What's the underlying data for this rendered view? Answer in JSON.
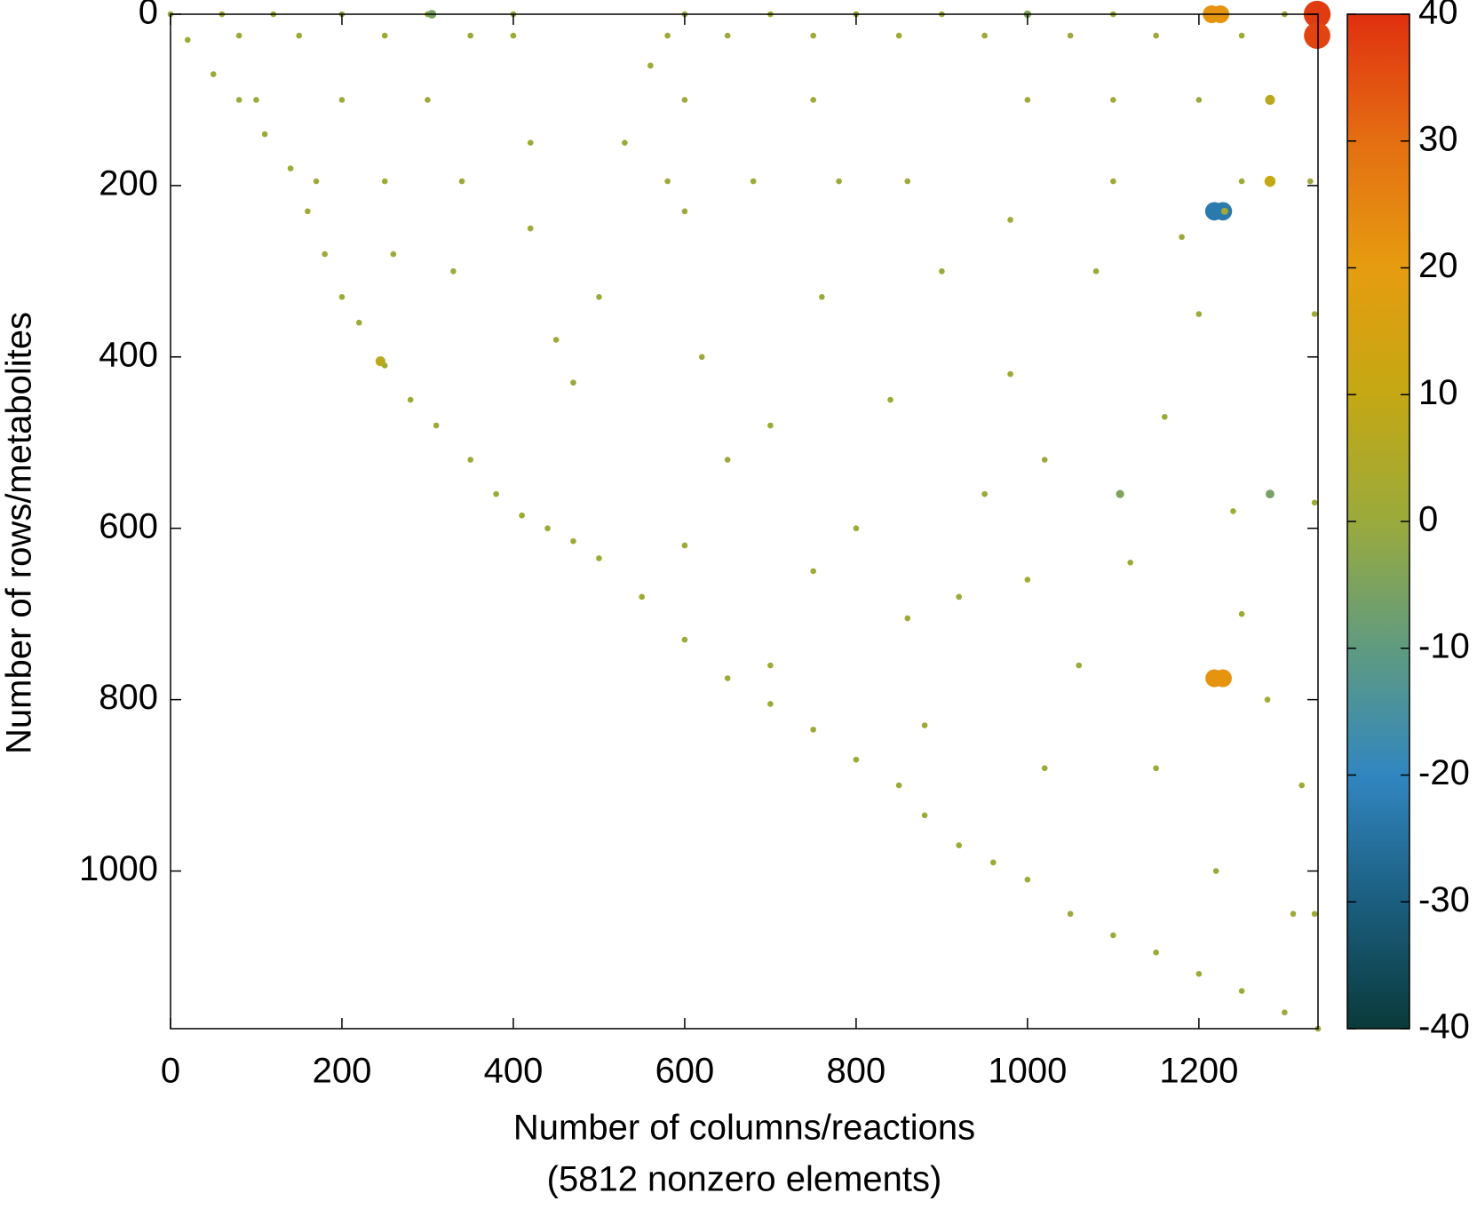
{
  "chart_data": {
    "type": "scatter",
    "xlabel": "Number of columns/reactions",
    "note": "(5812 nonzero elements)",
    "ylabel": "Number of rows/metabolites",
    "xlim": [
      0,
      1339
    ],
    "ylim": [
      0,
      1184
    ],
    "y_inverted": true,
    "xticks": [
      0,
      200,
      400,
      600,
      800,
      1000,
      1200
    ],
    "yticks": [
      0,
      200,
      400,
      600,
      800,
      1000
    ],
    "clim": [
      -40,
      40
    ],
    "cticks": [
      -40,
      -30,
      -20,
      -10,
      0,
      10,
      20,
      30,
      40
    ],
    "colormap": [
      "#0a3a3a",
      "#1b5e7f",
      "#3186c0",
      "#5f9b80",
      "#9aaa3c",
      "#c4a814",
      "#e69c10",
      "#e46e12",
      "#e03010"
    ],
    "x": [
      0,
      20,
      50,
      80,
      110,
      140,
      160,
      180,
      200,
      220,
      250,
      280,
      310,
      350,
      380,
      410,
      440,
      470,
      500,
      550,
      600,
      650,
      700,
      750,
      800,
      850,
      880,
      920,
      960,
      1000,
      1050,
      1100,
      1150,
      1200,
      1250,
      1300,
      1339,
      60,
      120,
      200,
      300,
      400,
      600,
      700,
      800,
      900,
      1000,
      1100,
      1300,
      80,
      150,
      250,
      350,
      400,
      580,
      650,
      750,
      850,
      950,
      1050,
      1150,
      1250,
      100,
      200,
      300,
      600,
      750,
      1000,
      1100,
      1200,
      170,
      250,
      340,
      580,
      680,
      780,
      860,
      1100,
      1250,
      1330,
      260,
      330,
      420,
      450,
      500,
      620,
      650,
      700,
      760,
      800,
      840,
      900,
      920,
      950,
      980,
      1020,
      1060,
      1120,
      1160,
      1200,
      1240,
      1280,
      1320,
      1310,
      1220,
      1150,
      1020,
      860,
      880,
      700,
      1080,
      1180,
      980,
      600,
      560,
      530,
      420,
      470,
      600,
      750,
      1000,
      1250,
      1335,
      1335,
      1335,
      1215,
      1225,
      1338,
      1338,
      1218,
      1228,
      1218,
      1228,
      245,
      1283,
      1283,
      1108,
      1283,
      1230,
      1000,
      305
    ],
    "y": [
      0,
      30,
      70,
      100,
      140,
      180,
      230,
      280,
      330,
      360,
      410,
      450,
      480,
      520,
      560,
      585,
      600,
      615,
      635,
      680,
      730,
      775,
      805,
      835,
      870,
      900,
      935,
      970,
      990,
      1010,
      1050,
      1075,
      1095,
      1120,
      1140,
      1165,
      1184,
      0,
      0,
      0,
      0,
      0,
      0,
      0,
      0,
      0,
      0,
      0,
      0,
      25,
      25,
      25,
      25,
      25,
      25,
      25,
      25,
      25,
      25,
      25,
      25,
      25,
      100,
      100,
      100,
      100,
      100,
      100,
      100,
      100,
      195,
      195,
      195,
      195,
      195,
      195,
      195,
      195,
      195,
      195,
      280,
      300,
      250,
      380,
      330,
      400,
      520,
      480,
      330,
      600,
      450,
      300,
      680,
      560,
      420,
      520,
      760,
      640,
      470,
      350,
      580,
      800,
      900,
      1050,
      1000,
      880,
      880,
      705,
      830,
      760,
      300,
      260,
      240,
      230,
      60,
      150,
      150,
      430,
      620,
      650,
      660,
      700,
      350,
      570,
      1050,
      0,
      0,
      0,
      25,
      230,
      230,
      775,
      775,
      405,
      195,
      100,
      560,
      560,
      230,
      0,
      0
    ],
    "values": [
      1,
      1,
      1,
      1,
      1,
      1,
      1,
      1,
      1,
      1,
      1,
      1,
      1,
      1,
      1,
      1,
      1,
      1,
      1,
      1,
      1,
      1,
      1,
      1,
      1,
      1,
      1,
      1,
      1,
      1,
      1,
      1,
      1,
      1,
      1,
      1,
      1,
      1,
      1,
      1,
      1,
      1,
      1,
      1,
      1,
      1,
      1,
      1,
      1,
      1,
      1,
      1,
      1,
      1,
      1,
      1,
      1,
      1,
      1,
      1,
      1,
      1,
      1,
      1,
      1,
      1,
      1,
      1,
      1,
      1,
      1,
      1,
      1,
      1,
      1,
      1,
      1,
      1,
      1,
      1,
      1,
      1,
      1,
      1,
      1,
      1,
      1,
      1,
      1,
      1,
      1,
      1,
      1,
      1,
      1,
      1,
      1,
      1,
      1,
      1,
      1,
      1,
      1,
      1,
      1,
      1,
      1,
      1,
      1,
      1,
      1,
      1,
      1,
      1,
      1,
      1,
      1,
      1,
      1,
      1,
      1,
      1,
      1,
      1,
      1,
      22,
      22,
      38,
      37,
      -23,
      -23,
      22,
      22,
      8,
      10,
      8,
      -5,
      -6,
      3,
      -4,
      -6
    ]
  }
}
